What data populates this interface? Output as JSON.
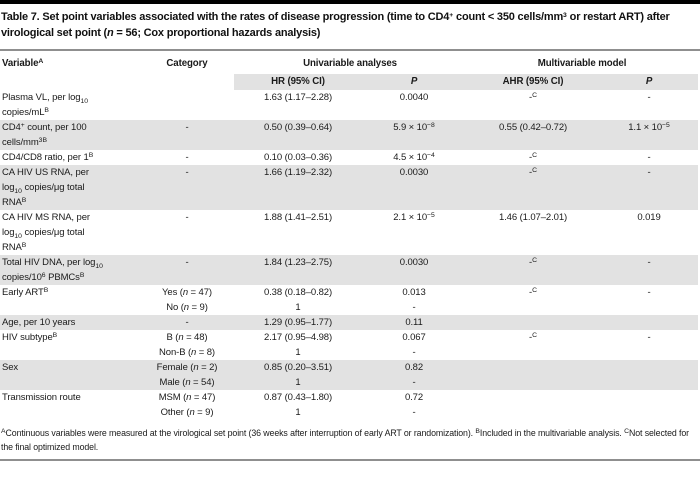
{
  "title": "Table 7. Set point variables associated with the rates of disease progression (time to CD4<sup>+</sup> count &lt; 350 cells/mm<sup>3</sup> or restart ART) after virological set point (<i>n</i> = 56; Cox proportional hazards analysis)",
  "colors": {
    "row_shading": "#e2e2e2",
    "rule_grey": "#8f8f8f",
    "top_bar": "#000000",
    "text": "#1a1a1a"
  },
  "table": {
    "columns": {
      "variable": "Variable<sup>A</sup>",
      "category": "Category",
      "group_univariable": "Univariable analyses",
      "group_multivariable": "Multivariable model",
      "hr": "HR (95% CI)",
      "p_univariable": "<i>P</i>",
      "ahr": "AHR (95% CI)",
      "p_multivariable": "<i>P</i>"
    },
    "rows": [
      {
        "variable": [
          "Plasma VL, per log<sub>10</sub>",
          "copies/mL<sup>B</sup>"
        ],
        "category": [],
        "hr": [
          "1.63 (1.17–2.28)"
        ],
        "p": [
          "0.0040"
        ],
        "ahr": [
          "-<sup>C</sup>"
        ],
        "p2": [
          "-"
        ],
        "shaded": false
      },
      {
        "variable": [
          "CD4<sup>+</sup> count, per 100",
          "cells/mm<sup>3B</sup>"
        ],
        "category": [
          "-"
        ],
        "hr": [
          "0.50 (0.39–0.64)"
        ],
        "p": [
          "5.9 × 10<sup>−8</sup>"
        ],
        "ahr": [
          "0.55 (0.42–0.72)"
        ],
        "p2": [
          "1.1 × 10<sup>−5</sup>"
        ],
        "shaded": true
      },
      {
        "variable": [
          "CD4/CD8 ratio, per 1<sup>B</sup>"
        ],
        "category": [
          "-"
        ],
        "hr": [
          "0.10 (0.03–0.36)"
        ],
        "p": [
          "4.5 × 10<sup>−4</sup>"
        ],
        "ahr": [
          "-<sup>C</sup>"
        ],
        "p2": [
          "-"
        ],
        "shaded": false
      },
      {
        "variable": [
          "CA HIV US RNA, per",
          "log<sub>10</sub> copies/μg total",
          "RNA<sup>B</sup>"
        ],
        "category": [
          "-"
        ],
        "hr": [
          "1.66 (1.19–2.32)"
        ],
        "p": [
          "0.0030"
        ],
        "ahr": [
          "-<sup>C</sup>"
        ],
        "p2": [
          "-"
        ],
        "shaded": true
      },
      {
        "variable": [
          "CA HIV MS RNA, per",
          "log<sub>10</sub> copies/μg total",
          "RNA<sup>B</sup>"
        ],
        "category": [
          "-"
        ],
        "hr": [
          "1.88 (1.41–2.51)"
        ],
        "p": [
          "2.1 × 10<sup>−5</sup>"
        ],
        "ahr": [
          "1.46 (1.07–2.01)"
        ],
        "p2": [
          "0.019"
        ],
        "shaded": false
      },
      {
        "variable": [
          "Total HIV DNA, per log<sub>10</sub>",
          "copies/10<sup>6</sup> PBMCs<sup>B</sup>"
        ],
        "category": [
          "-"
        ],
        "hr": [
          "1.84 (1.23–2.75)"
        ],
        "p": [
          "0.0030"
        ],
        "ahr": [
          "-<sup>C</sup>"
        ],
        "p2": [
          "-"
        ],
        "shaded": true
      },
      {
        "variable": [
          "Early ART<sup>B</sup>"
        ],
        "category": [
          "Yes (<i>n</i> = 47)",
          "No (<i>n</i> = 9)"
        ],
        "hr": [
          "0.38 (0.18–0.82)",
          "1"
        ],
        "p": [
          "0.013",
          "-"
        ],
        "ahr": [
          "-<sup>C</sup>"
        ],
        "p2": [
          "-"
        ],
        "shaded": false
      },
      {
        "variable": [
          "Age, per 10 years"
        ],
        "category": [
          "-"
        ],
        "hr": [
          "1.29 (0.95–1.77)"
        ],
        "p": [
          "0.11"
        ],
        "ahr": [],
        "p2": [],
        "shaded": true
      },
      {
        "variable": [
          "HIV subtype<sup>B</sup>"
        ],
        "category": [
          "B (<i>n</i> = 48)",
          "Non-B (<i>n</i> = 8)"
        ],
        "hr": [
          "2.17 (0.95–4.98)",
          "1"
        ],
        "p": [
          "0.067",
          "-"
        ],
        "ahr": [
          "-<sup>C</sup>"
        ],
        "p2": [
          "-"
        ],
        "shaded": false
      },
      {
        "variable": [
          "Sex"
        ],
        "category": [
          "Female (<i>n</i> = 2)",
          "Male (<i>n</i> = 54)"
        ],
        "hr": [
          "0.85 (0.20–3.51)",
          "1"
        ],
        "p": [
          "0.82",
          "-"
        ],
        "ahr": [],
        "p2": [],
        "shaded": true
      },
      {
        "variable": [
          "Transmission route"
        ],
        "category": [
          "MSM (<i>n</i> = 47)",
          "Other (<i>n</i> = 9)"
        ],
        "hr": [
          "0.87 (0.43–1.80)",
          "1"
        ],
        "p": [
          "0.72",
          "-"
        ],
        "ahr": [],
        "p2": [],
        "shaded": false
      }
    ]
  },
  "footnote": "<sup>A</sup>Continuous variables were measured at the virological set point (36 weeks after interruption of early ART or randomization). <sup>B</sup>Included in the multivariable analysis. <sup>C</sup>Not selected for the final optimized model."
}
